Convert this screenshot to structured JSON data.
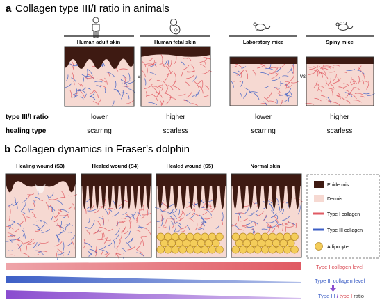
{
  "panel_a": {
    "letter": "a",
    "title": "Collagen type III/I ratio in animals",
    "columns": [
      {
        "label": "Human adult skin",
        "icon": "adult-human-icon"
      },
      {
        "label": "Human fetal skin",
        "icon": "fetus-icon"
      },
      {
        "label": "Laboratory mice",
        "icon": "mouse-icon"
      },
      {
        "label": "Spiny mice",
        "icon": "spiny-mouse-icon"
      }
    ],
    "vs": [
      "vs.",
      "vs."
    ],
    "rows": [
      {
        "label": "type III/I ratio",
        "values": [
          "lower",
          "higher",
          "lower",
          "higher"
        ]
      },
      {
        "label": "healing type",
        "values": [
          "scarring",
          "scarless",
          "scarring",
          "scarless"
        ]
      }
    ]
  },
  "panel_b": {
    "letter": "b",
    "title": "Collagen dynamics in Fraser's dolphin",
    "stages": [
      {
        "label": "Healing wound (S3)"
      },
      {
        "label": "Healed wound (S4)"
      },
      {
        "label": "Healed wound (S5)"
      },
      {
        "label": "Normal skin"
      }
    ],
    "legend": [
      {
        "label": "Epidermis",
        "color": "#3e1a12"
      },
      {
        "label": "Dermis",
        "color": "#f6d9d2"
      },
      {
        "label": "Type I collagen",
        "color": "#e05a63"
      },
      {
        "label": "Type III collagen",
        "color": "#3d5fc6"
      },
      {
        "label": "Adipocyte",
        "color": "#f4cd5a"
      }
    ],
    "trends": [
      {
        "label": "Type I collagen level",
        "color": "#e05a63",
        "direction": "increasing"
      },
      {
        "label": "Type III collagen level",
        "color": "#3d5fc6",
        "direction": "decreasing"
      }
    ],
    "ratio": {
      "part1": "Type III",
      "sep": " / ",
      "part2": "type I",
      "part3": " ratio",
      "direction": "decreasing"
    }
  },
  "colors": {
    "epidermis": "#3e1a12",
    "dermis": "#f6d9d2",
    "type1": "#e05a63",
    "type3": "#3d5fc6",
    "adipocyte": "#f4cd5a",
    "ratio": "#8a4ccf"
  }
}
